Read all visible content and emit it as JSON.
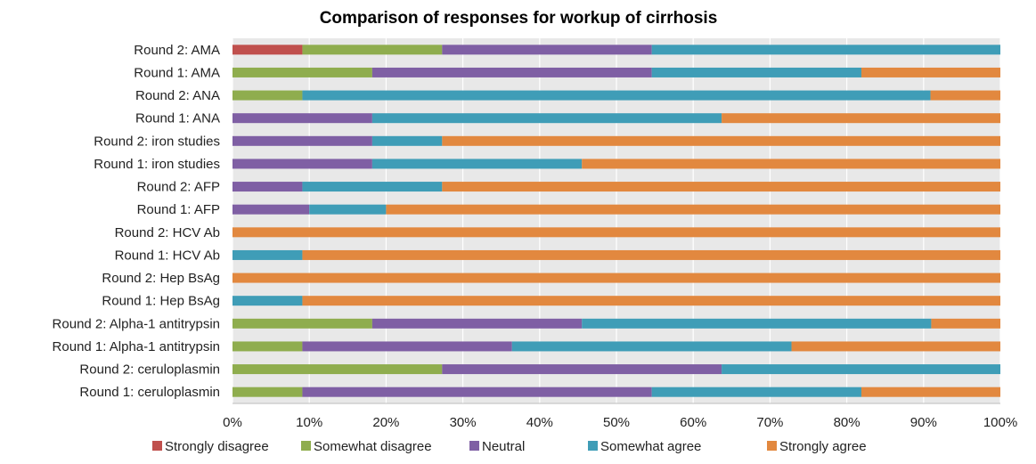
{
  "chart_data": {
    "type": "bar",
    "orientation": "horizontal",
    "stacked": true,
    "stack_mode": "percent",
    "title": "Comparison of  responses for workup of cirrhosis",
    "xlabel": "",
    "ylabel": "",
    "xlim": [
      0,
      100
    ],
    "x_ticks": [
      "0%",
      "10%",
      "20%",
      "30%",
      "40%",
      "50%",
      "60%",
      "70%",
      "80%",
      "90%",
      "100%"
    ],
    "x_tick_values": [
      0,
      10,
      20,
      30,
      40,
      50,
      60,
      70,
      80,
      90,
      100
    ],
    "grid": true,
    "legend_position": "bottom",
    "categories": [
      "Round 2: AMA",
      "Round 1: AMA",
      "Round 2: ANA",
      "Round 1: ANA",
      "Round 2: iron studies",
      "Round 1: iron studies",
      "Round 2: AFP",
      "Round 1: AFP",
      "Round 2: HCV Ab",
      "Round 1: HCV Ab",
      "Round 2: Hep BsAg",
      "Round 1: Hep BsAg",
      "Round 2: Alpha-1 antitrypsin",
      "Round 1: Alpha-1 antitrypsin",
      "Round 2: ceruloplasmin",
      "Round 1: ceruloplasmin"
    ],
    "series": [
      {
        "name": "Strongly  disagree",
        "color": "#c0504d",
        "values": [
          9.1,
          0,
          0,
          0,
          0,
          0,
          0,
          0,
          0,
          0,
          0,
          0,
          0,
          0,
          0,
          0
        ]
      },
      {
        "name": "Somewhat  disagree",
        "color": "#8fad4e",
        "values": [
          18.2,
          18.2,
          9.1,
          0,
          0,
          0,
          0,
          0,
          0,
          0,
          0,
          0,
          18.2,
          9.1,
          27.3,
          9.1
        ]
      },
      {
        "name": "Neutral",
        "color": "#7f5fa4",
        "values": [
          27.3,
          36.4,
          0,
          18.2,
          18.2,
          18.2,
          9.1,
          10,
          0,
          0,
          0,
          0,
          27.3,
          27.3,
          36.4,
          45.5
        ]
      },
      {
        "name": "Somewhat  agree",
        "color": "#3f9db7",
        "values": [
          45.4,
          27.3,
          81.8,
          45.5,
          9.1,
          27.3,
          18.2,
          10,
          0,
          9.1,
          0,
          9.1,
          45.5,
          36.4,
          36.3,
          27.3
        ]
      },
      {
        "name": "Strongly agree",
        "color": "#e2883f",
        "values": [
          0,
          18.1,
          9.1,
          36.3,
          72.7,
          54.5,
          72.7,
          80,
          100,
          90.9,
          100,
          90.9,
          9.0,
          27.2,
          0,
          18.1
        ]
      }
    ],
    "plot_background": "#e8e8e8",
    "gridline_color": "#ffffff"
  }
}
